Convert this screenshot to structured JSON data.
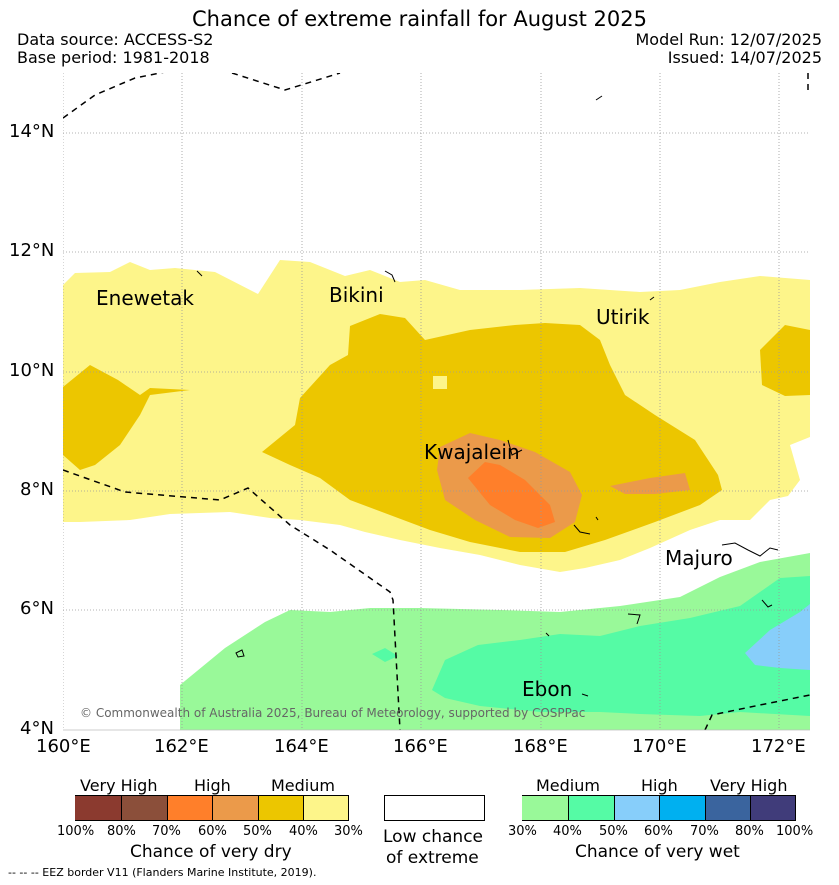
{
  "header": {
    "title": "Chance of extreme rainfall for August 2025",
    "data_source": "Data source: ACCESS-S2",
    "base_period": "Base period: 1981-2018",
    "model_run": "Model Run: 12/07/2025",
    "issued": "Issued: 14/07/2025"
  },
  "map": {
    "lon_ticks": [
      "160°E",
      "162°E",
      "164°E",
      "166°E",
      "168°E",
      "170°E",
      "172°E"
    ],
    "lat_ticks": [
      "14°N",
      "12°N",
      "10°N",
      "8°N",
      "6°N",
      "4°N"
    ],
    "places": [
      "Enewetak",
      "Bikini",
      "Utirik",
      "Kwajalein",
      "Majuro",
      "Ebon"
    ],
    "copyright": "© Commonwealth of Australia 2025, Bureau of Meteorology, supported by COSPPac"
  },
  "legend": {
    "dry": {
      "categories": [
        "Very High",
        "High",
        "Medium"
      ],
      "percent_labels": [
        "100%",
        "80%",
        "70%",
        "60%",
        "50%",
        "40%",
        "30%"
      ],
      "colors": [
        "#8b3a2f",
        "#8b4f3a",
        "#ff7f2a",
        "#eb9a4a",
        "#ecc600",
        "#fdf58a"
      ],
      "caption": "Chance of very dry"
    },
    "neutral": {
      "caption_line1": "Low chance",
      "caption_line2": "of extreme",
      "color": "#ffffff"
    },
    "wet": {
      "categories": [
        "Medium",
        "High",
        "Very High"
      ],
      "percent_labels": [
        "30%",
        "40%",
        "50%",
        "60%",
        "70%",
        "80%",
        "100%"
      ],
      "colors": [
        "#99f999",
        "#55fba5",
        "#87cefa",
        "#00b0f0",
        "#3a649e",
        "#403c7a"
      ],
      "caption": "Chance of very wet"
    },
    "eez_note": "--  --  -- EEZ border V11 (Flanders Marine Institute, 2019)."
  }
}
